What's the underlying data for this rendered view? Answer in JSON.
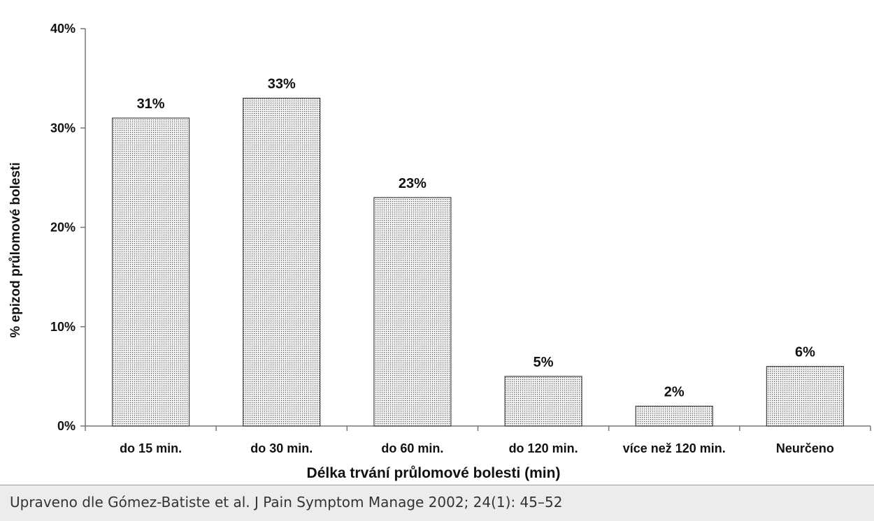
{
  "chart_data": {
    "type": "bar",
    "categories": [
      "do 15 min.",
      "do 30 min.",
      "do 60 min.",
      "do 120 min.",
      "více než 120 min.",
      "Neurčeno"
    ],
    "values": [
      31,
      33,
      23,
      5,
      2,
      6
    ],
    "data_labels": [
      "31%",
      "33%",
      "23%",
      "5%",
      "2%",
      "6%"
    ],
    "xlabel": "Délka trvání průlomové bolesti (min)",
    "ylabel": "% epizod průlomové bolesti",
    "ylim": [
      0,
      40
    ],
    "yticks": [
      0,
      10,
      20,
      30,
      40
    ],
    "ytick_labels": [
      "0%",
      "10%",
      "20%",
      "30%",
      "40%"
    ],
    "grid": false,
    "bar_fill": "dotted-gray"
  },
  "footer": {
    "text": "Upraveno dle  Gómez-Batiste et al. J Pain Symptom Manage 2002; 24(1): 45–52"
  },
  "colors": {
    "bar_dot": "#555555",
    "bar_bg": "#f4f4f4",
    "bar_border": "#444444",
    "footer_bg": "#ececec"
  }
}
